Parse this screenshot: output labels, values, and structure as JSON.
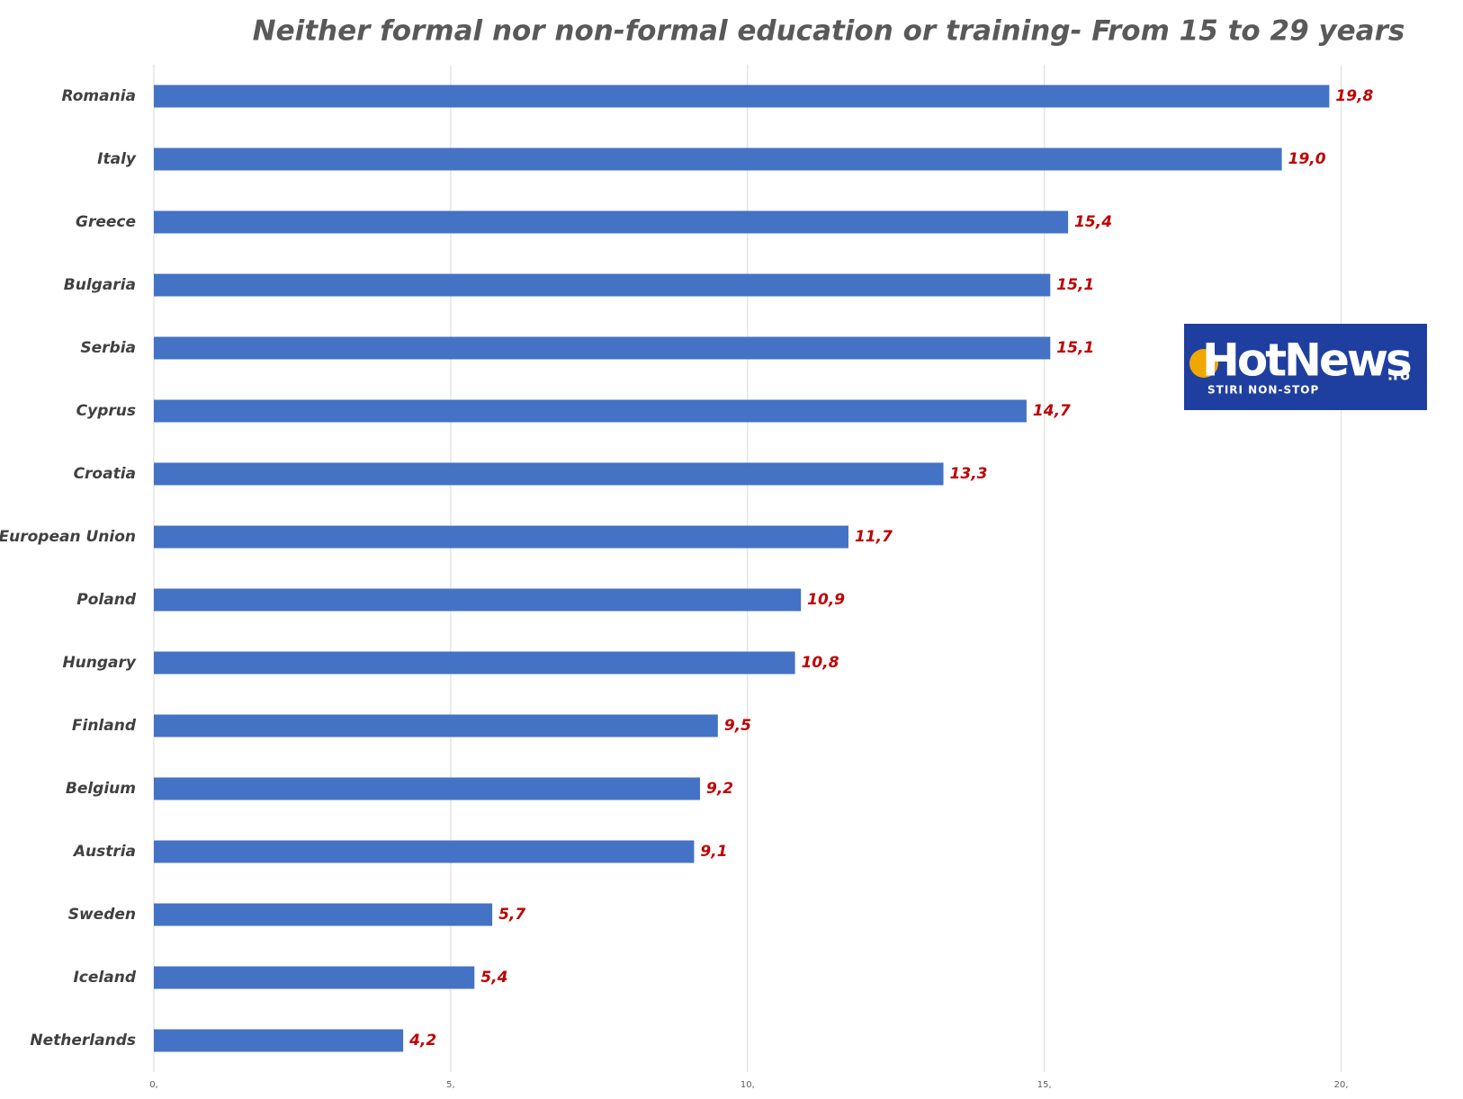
{
  "chart_data": {
    "type": "barh",
    "title": "Neither formal nor non-formal education or training- From 15 to 29 years",
    "categories": [
      "Romania",
      "Italy",
      "Greece",
      "Bulgaria",
      "Serbia",
      "Cyprus",
      "Croatia",
      "European Union",
      "Poland",
      "Hungary",
      "Finland",
      "Belgium",
      "Austria",
      "Sweden",
      "Iceland",
      "Netherlands"
    ],
    "values": [
      19.8,
      19.0,
      15.4,
      15.1,
      15.1,
      14.7,
      13.3,
      11.7,
      10.9,
      10.8,
      9.5,
      9.2,
      9.1,
      5.7,
      5.4,
      4.2
    ],
    "value_labels": [
      "19,8",
      "19,0",
      "15,4",
      "15,1",
      "15,1",
      "14,7",
      "13,3",
      "11,7",
      "10,9",
      "10,8",
      "9,5",
      "9,2",
      "9,1",
      "5,7",
      "5,4",
      "4,2"
    ],
    "color": "#4472c4",
    "label_color": "#c00000",
    "xlim": [
      0,
      20.4
    ],
    "xticks": [
      {
        "value": 0,
        "label": "0,"
      },
      {
        "value": 5,
        "label": "5,"
      },
      {
        "value": 10,
        "label": "10,"
      },
      {
        "value": 15,
        "label": "15,"
      },
      {
        "value": 20,
        "label": "20,"
      }
    ],
    "grid": true
  },
  "logo": {
    "text": "HotNews",
    "suffix": ".ro",
    "tagline": "STIRI NON-STOP"
  }
}
